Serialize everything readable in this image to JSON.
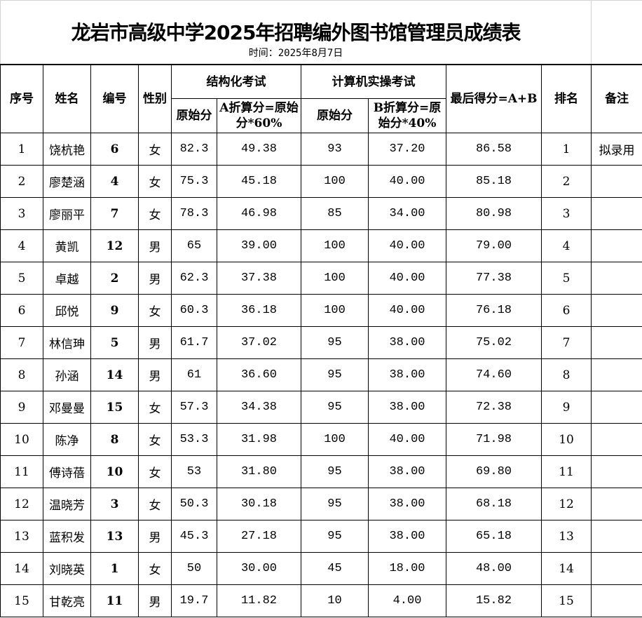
{
  "title": "龙岩市高级中学2025年招聘编外图书馆管理员成绩表",
  "date": "时间：2025年8月7日",
  "headers": {
    "seq": "序号",
    "name": "姓名",
    "id": "编号",
    "gender": "性别",
    "structured": "结构化考试",
    "computer": "计算机实操考试",
    "final": "最后得分=A+B",
    "rank": "排名",
    "note": "备注",
    "raw_a": "原始分",
    "conv_a": "A折算分=原始分*60%",
    "raw_b": "原始分",
    "conv_b": "B折算分=原始分*40%"
  },
  "rows": [
    [
      "1",
      "饶杭艳",
      "6",
      "女",
      "82.3",
      "49.38",
      "93",
      "37.20",
      "86.58",
      "1",
      "拟录用"
    ],
    [
      "2",
      "廖楚涵",
      "4",
      "女",
      "75.3",
      "45.18",
      "100",
      "40.00",
      "85.18",
      "2",
      ""
    ],
    [
      "3",
      "廖丽平",
      "7",
      "女",
      "78.3",
      "46.98",
      "85",
      "34.00",
      "80.98",
      "3",
      ""
    ],
    [
      "4",
      "黄凯",
      "12",
      "男",
      "65",
      "39.00",
      "100",
      "40.00",
      "79.00",
      "4",
      ""
    ],
    [
      "5",
      "卓越",
      "2",
      "男",
      "62.3",
      "37.38",
      "100",
      "40.00",
      "77.38",
      "5",
      ""
    ],
    [
      "6",
      "邱悦",
      "9",
      "女",
      "60.3",
      "36.18",
      "100",
      "40.00",
      "76.18",
      "6",
      ""
    ],
    [
      "7",
      "林信珅",
      "5",
      "男",
      "61.7",
      "37.02",
      "95",
      "38.00",
      "75.02",
      "7",
      ""
    ],
    [
      "8",
      "孙涵",
      "14",
      "男",
      "61",
      "36.60",
      "95",
      "38.00",
      "74.60",
      "8",
      ""
    ],
    [
      "9",
      "邓曼曼",
      "15",
      "女",
      "57.3",
      "34.38",
      "95",
      "38.00",
      "72.38",
      "9",
      ""
    ],
    [
      "10",
      "陈净",
      "8",
      "女",
      "53.3",
      "31.98",
      "100",
      "40.00",
      "71.98",
      "10",
      ""
    ],
    [
      "11",
      "傅诗蓓",
      "10",
      "女",
      "53",
      "31.80",
      "95",
      "38.00",
      "69.80",
      "11",
      ""
    ],
    [
      "12",
      "温晓芳",
      "3",
      "女",
      "50.3",
      "30.18",
      "95",
      "38.00",
      "68.18",
      "12",
      ""
    ],
    [
      "13",
      "蓝积发",
      "13",
      "男",
      "45.3",
      "27.18",
      "95",
      "38.00",
      "65.18",
      "13",
      ""
    ],
    [
      "14",
      "刘晓英",
      "1",
      "女",
      "50",
      "30.00",
      "45",
      "18.00",
      "48.00",
      "14",
      ""
    ],
    [
      "15",
      "甘乾亮",
      "11",
      "男",
      "19.7",
      "11.82",
      "10",
      "4.00",
      "15.82",
      "15",
      ""
    ]
  ]
}
